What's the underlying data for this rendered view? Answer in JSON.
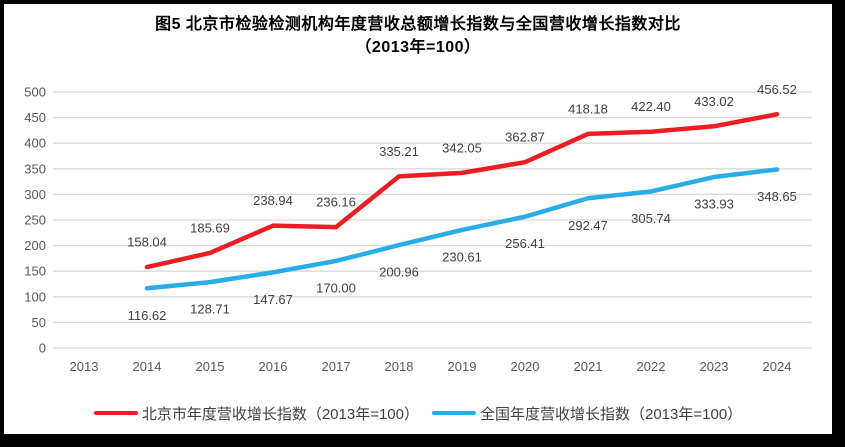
{
  "title": {
    "line1": "图5  北京市检验检测机构年度营收总额增长指数与全国营收增长指数对比",
    "line2": "（2013年=100）"
  },
  "colors": {
    "gridline": "#d9d9d9",
    "axis_text": "#595959",
    "data_label_text": "#404040",
    "frame_border": "#000000"
  },
  "chart_data": {
    "type": "line",
    "title": "图5 北京市检验检测机构年度营收总额增长指数与全国营收增长指数对比（2013年=100）",
    "categories": [
      "2013",
      "2014",
      "2015",
      "2016",
      "2017",
      "2018",
      "2019",
      "2020",
      "2021",
      "2022",
      "2023",
      "2024"
    ],
    "series": [
      {
        "name": "北京市年度营收增长指数（2013年=100）",
        "color": "#ee1d23",
        "values": [
          null,
          158.04,
          185.69,
          238.94,
          236.16,
          335.21,
          342.05,
          362.87,
          418.18,
          422.4,
          433.02,
          456.52
        ]
      },
      {
        "name": "全国年度营收增长指数（2013年=100）",
        "color": "#29ade6",
        "values": [
          null,
          116.62,
          128.71,
          147.67,
          170.0,
          200.96,
          230.61,
          256.41,
          292.47,
          305.74,
          333.93,
          348.65
        ]
      }
    ],
    "xlabel": "",
    "ylabel": "",
    "ylim": [
      0,
      500
    ],
    "ytick_step": 50,
    "grid": true,
    "data_labels": true,
    "data_label_decimals": 2,
    "legend_position": "bottom"
  }
}
